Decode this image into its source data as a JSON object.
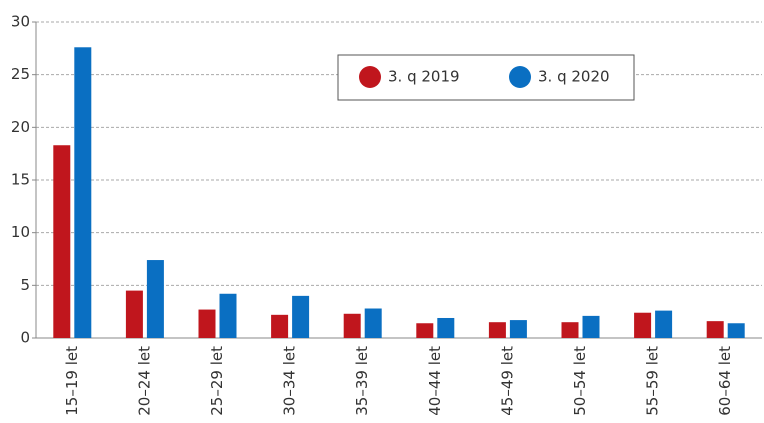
{
  "chart_data": {
    "type": "bar",
    "categories": [
      "15–19 let",
      "20–24 let",
      "25–29 let",
      "30–34 let",
      "35–39 let",
      "40–44 let",
      "45–49 let",
      "50–54 let",
      "55–59 let",
      "60–64 let"
    ],
    "series": [
      {
        "name": "3. q 2019",
        "color": "#c0161d",
        "values": [
          18.3,
          4.5,
          2.7,
          2.2,
          2.3,
          1.4,
          1.5,
          1.5,
          2.4,
          1.6
        ]
      },
      {
        "name": "3. q 2020",
        "color": "#0a6fc2",
        "values": [
          27.6,
          7.4,
          4.2,
          4.0,
          2.8,
          1.9,
          1.7,
          2.1,
          2.6,
          1.4
        ]
      }
    ],
    "ylim": [
      0,
      30
    ],
    "yticks": [
      0,
      5,
      10,
      15,
      20,
      25,
      30
    ],
    "grid": true
  }
}
